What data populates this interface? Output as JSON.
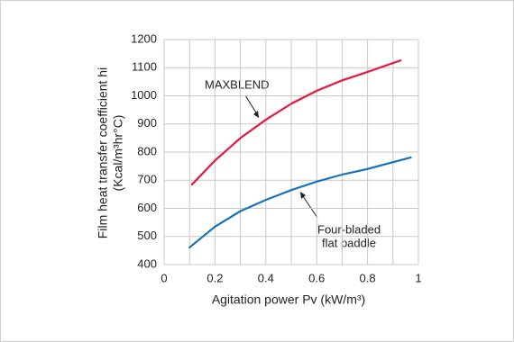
{
  "chart_data": {
    "type": "line",
    "xlabel": "Agitation power Pv (kW/m³)",
    "ylabel": [
      "Film heat transfer coefficient hi",
      "(Kcal/m³hr°C)"
    ],
    "xlim": [
      0,
      1
    ],
    "xticks": [
      0,
      0.2,
      0.4,
      0.6,
      0.8,
      1
    ],
    "ylim": [
      400,
      1200
    ],
    "yticks": [
      400,
      500,
      600,
      700,
      800,
      900,
      1000,
      1100,
      1200
    ],
    "grid": true,
    "series": [
      {
        "name": "MAXBLEND",
        "color": "#e8173f",
        "x": [
          0.11,
          0.2,
          0.3,
          0.4,
          0.5,
          0.6,
          0.7,
          0.8,
          0.93
        ],
        "values": [
          685,
          770,
          850,
          915,
          972,
          1018,
          1055,
          1085,
          1126
        ]
      },
      {
        "name": "Four-bladed flat paddle",
        "label_lines": [
          "Four-bladed",
          "flat paddle"
        ],
        "color": "#1a73b8",
        "x": [
          0.1,
          0.2,
          0.3,
          0.4,
          0.5,
          0.6,
          0.7,
          0.8,
          0.97
        ],
        "values": [
          461,
          535,
          590,
          630,
          665,
          695,
          720,
          740,
          781
        ]
      }
    ]
  }
}
